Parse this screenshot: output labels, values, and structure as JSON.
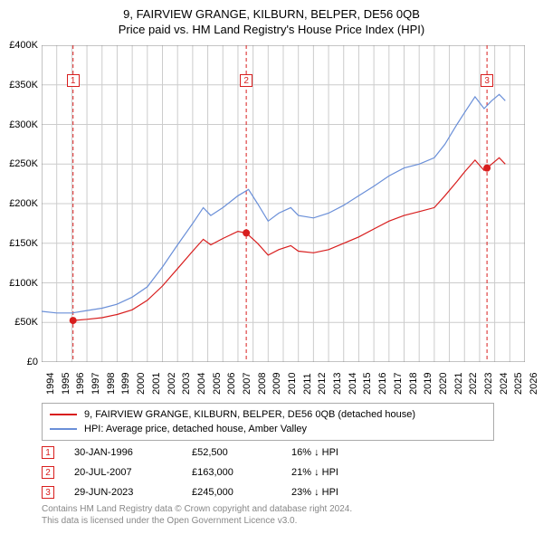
{
  "titles": {
    "line1": "9, FAIRVIEW GRANGE, KILBURN, BELPER, DE56 0QB",
    "line2": "Price paid vs. HM Land Registry's House Price Index (HPI)"
  },
  "chart": {
    "type": "line",
    "plot_bg": "#ffffff",
    "grid_color": "#cccccc",
    "axis_color": "#888888",
    "x_range": [
      1994,
      2026
    ],
    "y_range": [
      0,
      400000
    ],
    "x_ticks": [
      1994,
      1995,
      1996,
      1997,
      1998,
      1999,
      2000,
      2001,
      2002,
      2003,
      2004,
      2005,
      2006,
      2007,
      2008,
      2009,
      2010,
      2011,
      2012,
      2013,
      2014,
      2015,
      2016,
      2017,
      2018,
      2019,
      2020,
      2021,
      2022,
      2023,
      2024,
      2025,
      2026
    ],
    "y_ticks": [
      0,
      50000,
      100000,
      150000,
      200000,
      250000,
      300000,
      350000,
      400000
    ],
    "y_tick_labels": [
      "£0",
      "£50K",
      "£100K",
      "£150K",
      "£200K",
      "£250K",
      "£300K",
      "£350K",
      "£400K"
    ],
    "series": [
      {
        "id": "hpi",
        "label": "HPI: Average price, detached house, Amber Valley",
        "color": "#6a8fd8",
        "width": 1.2,
        "data": [
          [
            1994.0,
            64000
          ],
          [
            1995.0,
            62000
          ],
          [
            1996.0,
            62000
          ],
          [
            1997.0,
            65000
          ],
          [
            1998.0,
            68000
          ],
          [
            1999.0,
            73000
          ],
          [
            2000.0,
            82000
          ],
          [
            2001.0,
            95000
          ],
          [
            2002.0,
            120000
          ],
          [
            2003.0,
            148000
          ],
          [
            2004.0,
            175000
          ],
          [
            2004.7,
            195000
          ],
          [
            2005.2,
            185000
          ],
          [
            2006.0,
            195000
          ],
          [
            2007.0,
            210000
          ],
          [
            2007.7,
            218000
          ],
          [
            2008.3,
            200000
          ],
          [
            2009.0,
            178000
          ],
          [
            2009.7,
            188000
          ],
          [
            2010.5,
            195000
          ],
          [
            2011.0,
            185000
          ],
          [
            2012.0,
            182000
          ],
          [
            2013.0,
            188000
          ],
          [
            2014.0,
            198000
          ],
          [
            2015.0,
            210000
          ],
          [
            2016.0,
            222000
          ],
          [
            2017.0,
            235000
          ],
          [
            2018.0,
            245000
          ],
          [
            2019.0,
            250000
          ],
          [
            2020.0,
            258000
          ],
          [
            2020.7,
            275000
          ],
          [
            2021.5,
            300000
          ],
          [
            2022.0,
            315000
          ],
          [
            2022.7,
            335000
          ],
          [
            2023.3,
            320000
          ],
          [
            2023.8,
            330000
          ],
          [
            2024.3,
            338000
          ],
          [
            2024.7,
            330000
          ]
        ]
      },
      {
        "id": "property",
        "label": "9, FAIRVIEW GRANGE, KILBURN, BELPER, DE56 0QB (detached house)",
        "color": "#d81e1e",
        "width": 1.2,
        "data": [
          [
            1996.08,
            52500
          ],
          [
            1997.0,
            54000
          ],
          [
            1998.0,
            56000
          ],
          [
            1999.0,
            60000
          ],
          [
            2000.0,
            66000
          ],
          [
            2001.0,
            78000
          ],
          [
            2002.0,
            96000
          ],
          [
            2003.0,
            118000
          ],
          [
            2004.0,
            140000
          ],
          [
            2004.7,
            155000
          ],
          [
            2005.2,
            148000
          ],
          [
            2006.0,
            156000
          ],
          [
            2007.0,
            165000
          ],
          [
            2007.55,
            163000
          ],
          [
            2008.3,
            150000
          ],
          [
            2009.0,
            135000
          ],
          [
            2009.7,
            142000
          ],
          [
            2010.5,
            147000
          ],
          [
            2011.0,
            140000
          ],
          [
            2012.0,
            138000
          ],
          [
            2013.0,
            142000
          ],
          [
            2014.0,
            150000
          ],
          [
            2015.0,
            158000
          ],
          [
            2016.0,
            168000
          ],
          [
            2017.0,
            178000
          ],
          [
            2018.0,
            185000
          ],
          [
            2019.0,
            190000
          ],
          [
            2020.0,
            195000
          ],
          [
            2020.7,
            210000
          ],
          [
            2021.5,
            228000
          ],
          [
            2022.0,
            240000
          ],
          [
            2022.7,
            255000
          ],
          [
            2023.3,
            242000
          ],
          [
            2023.49,
            245000
          ],
          [
            2023.8,
            250000
          ],
          [
            2024.3,
            258000
          ],
          [
            2024.7,
            250000
          ]
        ]
      }
    ],
    "sale_markers": [
      {
        "n": "1",
        "x": 1996.08,
        "y": 52500,
        "color": "#d81e1e",
        "label_y": 355000
      },
      {
        "n": "2",
        "x": 2007.55,
        "y": 163000,
        "color": "#d81e1e",
        "label_y": 355000
      },
      {
        "n": "3",
        "x": 2023.49,
        "y": 245000,
        "color": "#d81e1e",
        "label_y": 355000
      }
    ],
    "vline_color": "#d81e1e",
    "vline_dash": "4 3"
  },
  "legend": {
    "rows": [
      {
        "color": "#d81e1e",
        "label": "9, FAIRVIEW GRANGE, KILBURN, BELPER, DE56 0QB (detached house)"
      },
      {
        "color": "#6a8fd8",
        "label": "HPI: Average price, detached house, Amber Valley"
      }
    ]
  },
  "sales": [
    {
      "n": "1",
      "color": "#d81e1e",
      "date": "30-JAN-1996",
      "price": "£52,500",
      "hpi": "16% ↓ HPI"
    },
    {
      "n": "2",
      "color": "#d81e1e",
      "date": "20-JUL-2007",
      "price": "£163,000",
      "hpi": "21% ↓ HPI"
    },
    {
      "n": "3",
      "color": "#d81e1e",
      "date": "29-JUN-2023",
      "price": "£245,000",
      "hpi": "23% ↓ HPI"
    }
  ],
  "attribution": {
    "line1": "Contains HM Land Registry data © Crown copyright and database right 2024.",
    "line2": "This data is licensed under the Open Government Licence v3.0."
  }
}
